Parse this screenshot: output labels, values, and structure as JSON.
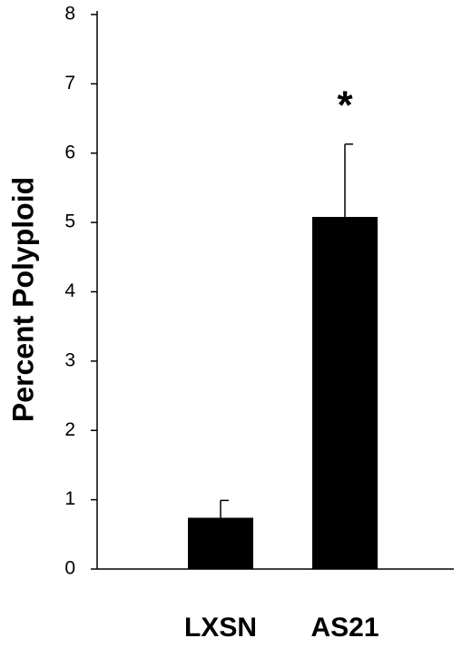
{
  "chart_data": {
    "type": "bar",
    "y_label": "Percent Polyploid",
    "categories": [
      "LXSN",
      "AS21"
    ],
    "values": [
      0.74,
      5.08
    ],
    "errors": [
      0.25,
      1.05
    ],
    "color": "#000000",
    "ylim": [
      0,
      8
    ],
    "yticks": [
      0,
      1,
      2,
      3,
      4,
      5,
      6,
      7,
      8
    ],
    "annotation": "*"
  }
}
